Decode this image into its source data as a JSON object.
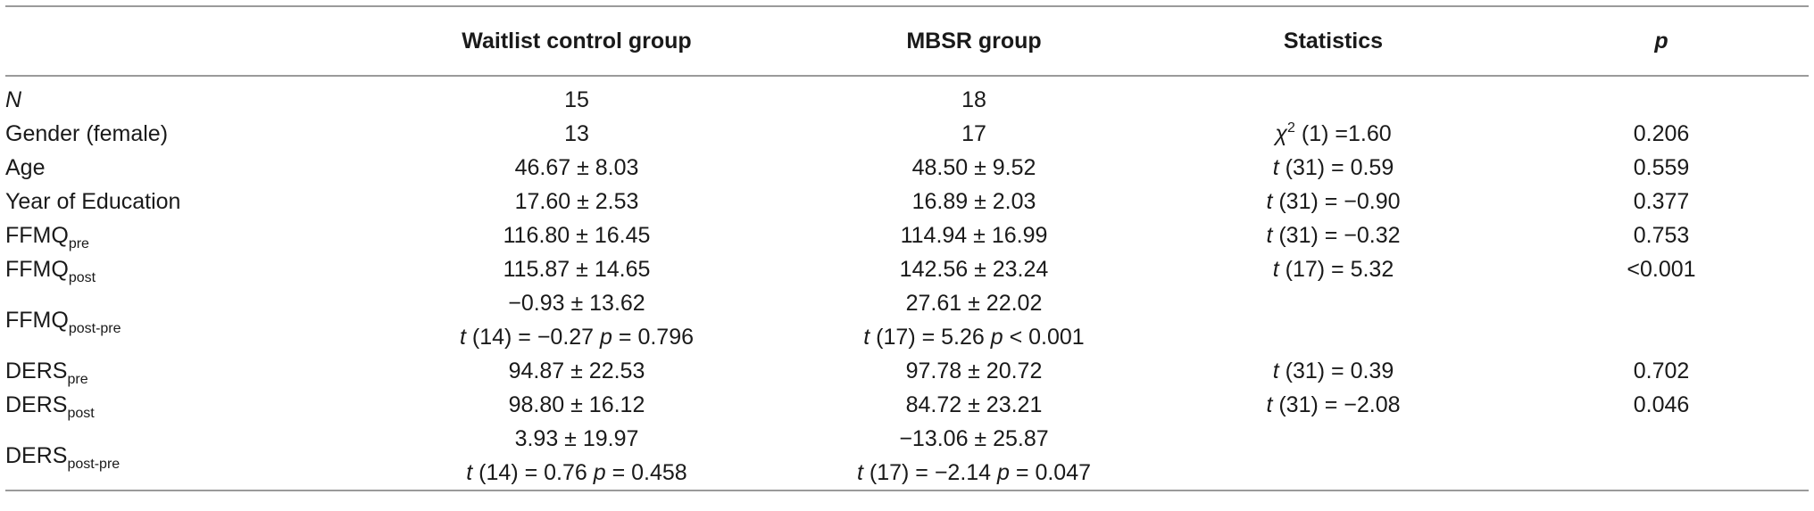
{
  "columns": {
    "c1": "Waitlist control group",
    "c2": "MBSR group",
    "c3": "Statistics",
    "c4": "p"
  },
  "rows": [
    {
      "label": "N",
      "c1": "15",
      "c2": "18",
      "c3": "",
      "c4": ""
    },
    {
      "label": "Gender (female)",
      "c1": "13",
      "c2": "17",
      "c3_sym": "χ",
      "c3_sup": "2",
      "c3_rest": " (1) =1.60",
      "c4": "0.206"
    },
    {
      "label": "Age",
      "c1": "46.67 ± 8.03",
      "c2": "48.50 ± 9.52",
      "c3_t": "t",
      "c3_rest": " (31) = 0.59",
      "c4": "0.559"
    },
    {
      "label": "Year of Education",
      "c1": "17.60 ± 2.53",
      "c2": "16.89 ± 2.03",
      "c3_t": "t",
      "c3_rest": " (31) = −0.90",
      "c4": "0.377"
    },
    {
      "label_main": "FFMQ",
      "label_sub": "pre",
      "c1": "116.80 ± 16.45",
      "c2": "114.94 ± 16.99",
      "c3_t": "t",
      "c3_rest": " (31) = −0.32",
      "c4": "0.753"
    },
    {
      "label_main": "FFMQ",
      "label_sub": "post",
      "c1": "115.87 ± 14.65",
      "c2": "142.56 ± 23.24",
      "c3_t": "t",
      "c3_rest": " (17) = 5.32",
      "c4": "<0.001"
    },
    {
      "label_main": "FFMQ",
      "label_sub": "post-pre",
      "c1_line1": "−0.93 ± 13.62",
      "c1_t": "t",
      "c1_mid": " (14) = −0.27 ",
      "c1_p": "p",
      "c1_end": " = 0.796",
      "c2_line1": "27.61 ± 22.02",
      "c2_t": "t",
      "c2_mid": " (17) = 5.26 ",
      "c2_p": "p",
      "c2_end": " < 0.001"
    },
    {
      "label_main": "DERS",
      "label_sub": "pre",
      "c1": "94.87 ± 22.53",
      "c2": "97.78 ± 20.72",
      "c3_t": "t",
      "c3_rest": " (31) = 0.39",
      "c4": "0.702"
    },
    {
      "label_main": "DERS",
      "label_sub": "post",
      "c1": "98.80 ± 16.12",
      "c2": "84.72 ± 23.21",
      "c3_t": "t",
      "c3_rest": " (31) = −2.08",
      "c4": "0.046"
    },
    {
      "label_main": "DERS",
      "label_sub": "post-pre",
      "c1_line1": "3.93 ± 19.97",
      "c1_t": "t",
      "c1_mid": " (14) = 0.76 ",
      "c1_p": "p",
      "c1_end": " = 0.458",
      "c2_line1": "−13.06 ± 25.87",
      "c2_t": "t",
      "c2_mid": " (17) = −2.14 ",
      "c2_p": "p",
      "c2_end": " = 0.047"
    }
  ]
}
